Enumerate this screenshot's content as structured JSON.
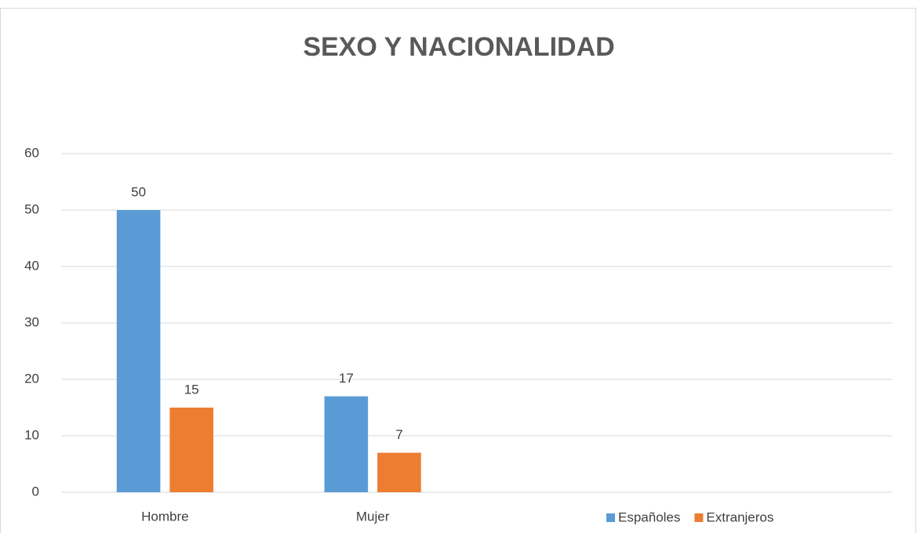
{
  "chart_data": {
    "type": "bar",
    "title": "SEXO Y NACIONALIDAD",
    "categories": [
      "Hombre",
      "Mujer",
      null,
      null
    ],
    "series": [
      {
        "name": "Españoles",
        "color": "#5b9bd5",
        "values": [
          50,
          17,
          null,
          null
        ]
      },
      {
        "name": "Extranjeros",
        "color": "#ed7d31",
        "values": [
          15,
          7,
          null,
          null
        ]
      }
    ],
    "ylim": [
      0,
      60
    ],
    "yticks": [
      0,
      10,
      20,
      30,
      40,
      50,
      60
    ],
    "grid": true,
    "legend": "bottom-right"
  }
}
